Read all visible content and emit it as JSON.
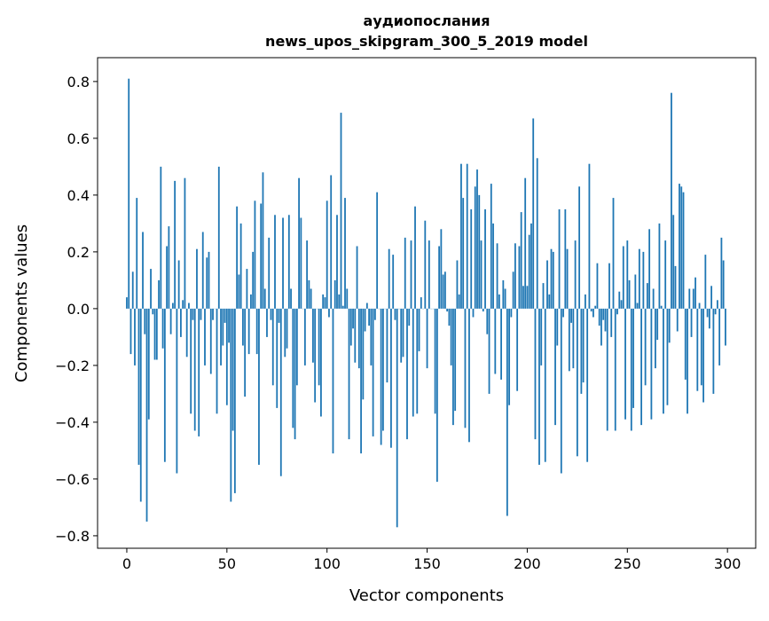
{
  "chart_data": {
    "type": "bar",
    "title": "аудиопослания",
    "subtitle": "news_upos_skipgram_300_5_2019 model",
    "xlabel": "Vector components",
    "ylabel": "Components values",
    "xlim": [
      -14.6,
      314.1
    ],
    "ylim": [
      -0.844,
      0.884
    ],
    "xticks": [
      0,
      50,
      100,
      150,
      200,
      250,
      300
    ],
    "xtick_labels": [
      "0",
      "50",
      "100",
      "150",
      "200",
      "250",
      "300"
    ],
    "yticks": [
      -0.8,
      -0.6,
      -0.4,
      -0.2,
      0.0,
      0.2,
      0.4,
      0.6,
      0.8
    ],
    "ytick_labels": [
      "−0.8",
      "−0.6",
      "−0.4",
      "−0.2",
      "0.0",
      "0.2",
      "0.4",
      "0.6",
      "0.8"
    ],
    "grid": false,
    "bar_color": "#1f77b4",
    "values": [
      0.04,
      0.81,
      -0.16,
      0.13,
      -0.2,
      0.39,
      -0.55,
      -0.68,
      0.27,
      -0.09,
      -0.75,
      -0.39,
      0.14,
      -0.02,
      -0.18,
      -0.18,
      0.1,
      0.5,
      -0.14,
      -0.54,
      0.22,
      0.29,
      -0.09,
      0.02,
      0.45,
      -0.58,
      0.17,
      -0.1,
      0.03,
      0.46,
      -0.17,
      0.02,
      -0.37,
      -0.04,
      -0.43,
      0.21,
      -0.45,
      -0.04,
      0.27,
      -0.2,
      0.18,
      0.2,
      -0.23,
      -0.04,
      0.0,
      -0.37,
      0.5,
      -0.2,
      -0.13,
      -0.05,
      -0.34,
      -0.12,
      -0.68,
      -0.43,
      -0.65,
      0.36,
      0.12,
      0.3,
      -0.13,
      -0.31,
      0.14,
      -0.16,
      0.05,
      0.2,
      0.38,
      -0.16,
      -0.55,
      0.37,
      0.48,
      0.07,
      -0.1,
      0.25,
      -0.04,
      -0.27,
      0.33,
      -0.35,
      -0.05,
      -0.59,
      0.32,
      -0.17,
      -0.14,
      0.33,
      0.07,
      -0.42,
      -0.46,
      -0.27,
      0.46,
      0.32,
      0.0,
      -0.2,
      0.24,
      0.1,
      0.07,
      -0.19,
      -0.33,
      0.0,
      -0.27,
      -0.38,
      0.05,
      0.04,
      0.38,
      -0.03,
      0.47,
      -0.51,
      0.1,
      0.33,
      0.05,
      0.69,
      0.01,
      0.39,
      0.07,
      -0.46,
      -0.13,
      -0.07,
      -0.19,
      0.22,
      -0.21,
      -0.51,
      -0.32,
      -0.08,
      0.02,
      -0.06,
      -0.2,
      -0.45,
      -0.04,
      0.41,
      0.0,
      -0.48,
      -0.43,
      0.0,
      -0.26,
      0.21,
      -0.49,
      0.19,
      -0.04,
      -0.77,
      0.0,
      -0.19,
      -0.17,
      0.25,
      -0.46,
      -0.06,
      0.24,
      -0.38,
      0.36,
      -0.37,
      -0.15,
      0.04,
      0.0,
      0.31,
      -0.21,
      0.24,
      0.0,
      0.0,
      -0.37,
      -0.61,
      0.22,
      0.28,
      0.12,
      0.13,
      -0.01,
      -0.06,
      -0.2,
      -0.41,
      -0.36,
      0.17,
      0.05,
      0.51,
      0.39,
      -0.42,
      0.51,
      -0.47,
      0.35,
      -0.03,
      0.43,
      0.49,
      0.4,
      0.24,
      -0.01,
      0.35,
      -0.09,
      -0.3,
      0.44,
      0.3,
      -0.23,
      0.23,
      0.05,
      -0.25,
      0.1,
      0.07,
      -0.73,
      -0.34,
      -0.03,
      0.13,
      0.23,
      -0.29,
      0.22,
      0.34,
      0.08,
      0.46,
      0.08,
      0.26,
      0.3,
      0.67,
      -0.46,
      0.53,
      -0.55,
      -0.2,
      0.09,
      -0.54,
      0.17,
      0.05,
      0.21,
      0.2,
      -0.41,
      -0.13,
      0.35,
      -0.58,
      -0.03,
      0.35,
      0.21,
      -0.22,
      -0.05,
      -0.21,
      0.24,
      -0.52,
      0.43,
      -0.3,
      -0.26,
      0.05,
      -0.54,
      0.51,
      -0.01,
      -0.03,
      0.01,
      0.16,
      -0.06,
      -0.13,
      -0.04,
      -0.08,
      -0.43,
      0.16,
      -0.1,
      0.39,
      -0.43,
      -0.02,
      0.06,
      0.03,
      0.22,
      -0.39,
      0.24,
      0.1,
      -0.43,
      -0.35,
      0.12,
      0.02,
      0.21,
      -0.41,
      0.2,
      -0.27,
      0.09,
      0.28,
      -0.39,
      0.07,
      -0.21,
      -0.11,
      0.3,
      0.01,
      -0.37,
      0.24,
      -0.34,
      -0.12,
      0.76,
      0.33,
      0.15,
      -0.08,
      0.44,
      0.43,
      0.41,
      -0.25,
      -0.37,
      0.07,
      -0.1,
      0.07,
      0.11,
      -0.29,
      0.02,
      -0.27,
      -0.33,
      0.19,
      -0.03,
      -0.07,
      0.08,
      -0.3,
      -0.02,
      0.03,
      -0.2,
      0.25,
      0.17,
      -0.13
    ]
  }
}
